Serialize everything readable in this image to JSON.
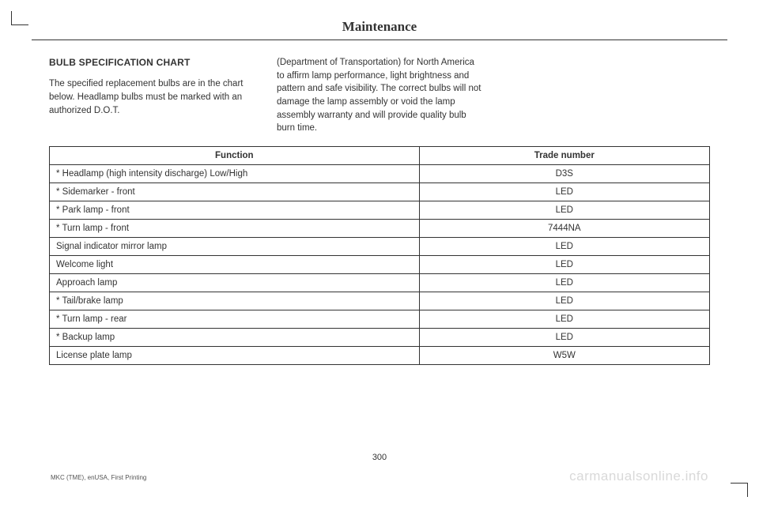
{
  "header": {
    "title": "Maintenance"
  },
  "section": {
    "title": "BULB SPECIFICATION CHART",
    "col1": "The specified replacement bulbs are in the chart below. Headlamp bulbs must be marked with an authorized D.O.T.",
    "col2": "(Department of Transportation) for North America to affirm lamp performance, light brightness and pattern and safe visibility. The correct bulbs will not damage the lamp assembly or void the lamp assembly warranty and will provide quality bulb burn time."
  },
  "table": {
    "columns": [
      "Function",
      "Trade number"
    ],
    "rows": [
      [
        "* Headlamp (high intensity discharge) Low/High",
        "D3S"
      ],
      [
        "* Sidemarker - front",
        "LED"
      ],
      [
        "* Park lamp - front",
        "LED"
      ],
      [
        "* Turn lamp - front",
        "7444NA"
      ],
      [
        "Signal indicator mirror lamp",
        "LED"
      ],
      [
        "Welcome light",
        "LED"
      ],
      [
        "Approach lamp",
        "LED"
      ],
      [
        "* Tail/brake lamp",
        "LED"
      ],
      [
        "* Turn lamp - rear",
        "LED"
      ],
      [
        "* Backup lamp",
        "LED"
      ],
      [
        "License plate lamp",
        "W5W"
      ]
    ],
    "col_widths": [
      "56%",
      "44%"
    ]
  },
  "footer": {
    "page_number": "300",
    "imprint": "MKC (TME), enUSA, First Printing",
    "watermark": "carmanualsonline.info"
  },
  "colors": {
    "text": "#333333",
    "border": "#333333",
    "watermark": "#d9d9d9",
    "bg": "#ffffff"
  }
}
